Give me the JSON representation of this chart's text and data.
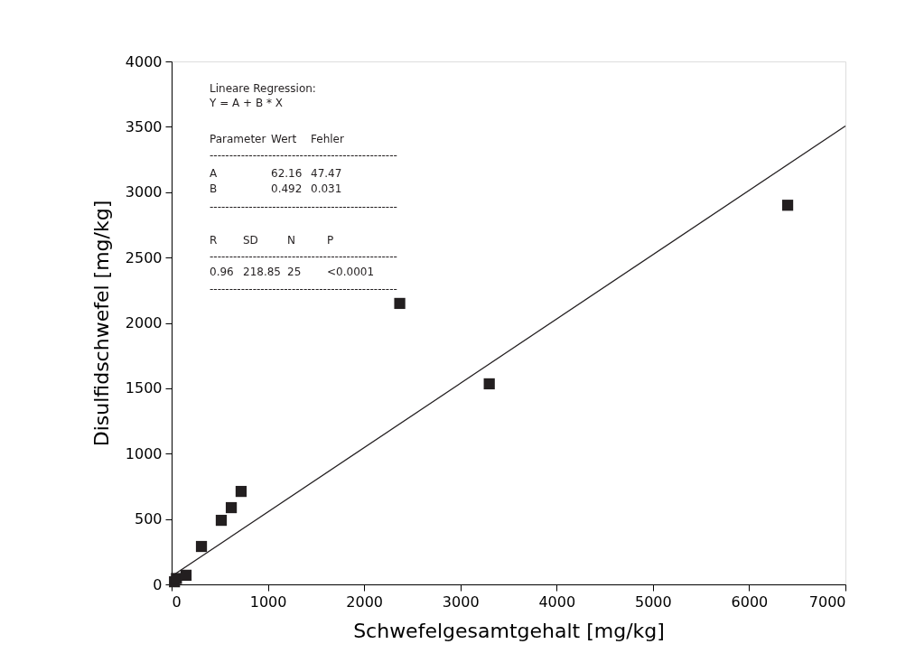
{
  "chart_data": {
    "type": "scatter",
    "xlabel": "Schwefelgesamtgehalt  [mg/kg]",
    "ylabel": "Disulfidschwefel [mg/kg]",
    "xlim": [
      0,
      7000
    ],
    "xticks": [
      0,
      1000,
      2000,
      3000,
      4000,
      5000,
      6000,
      7000
    ],
    "ylim": [
      0,
      4000
    ],
    "yticks": [
      0,
      500,
      1000,
      1500,
      2000,
      2500,
      3000,
      3500,
      4000
    ],
    "grid": false,
    "series": [
      {
        "marker": "square",
        "color": "#231f20",
        "x": [
          30,
          50,
          150,
          310,
          516,
          620,
          722,
          2370,
          3300,
          6400
        ],
        "values": [
          20,
          45,
          70,
          290,
          490,
          587,
          711,
          2149,
          1534,
          2900
        ]
      },
      {
        "type": "line",
        "marker": "none",
        "line_style": "solid",
        "color": "#231f20",
        "x": [
          0,
          7000
        ],
        "values": [
          62,
          3506
        ]
      }
    ],
    "annotations": [
      "Lineare Regression:",
      "Y = A + B * X",
      "Parameter\tWert\tFehler",
      "------------------------------------------------",
      "A\t62.16\t47.47",
      "B\t0.492\t0.031",
      "------------------------------------------------",
      "R\tSD\tN\tP",
      "------------------------------------------------",
      "0.96\t218.85\t25\t<0.0001",
      "------------------------------------------------"
    ]
  }
}
